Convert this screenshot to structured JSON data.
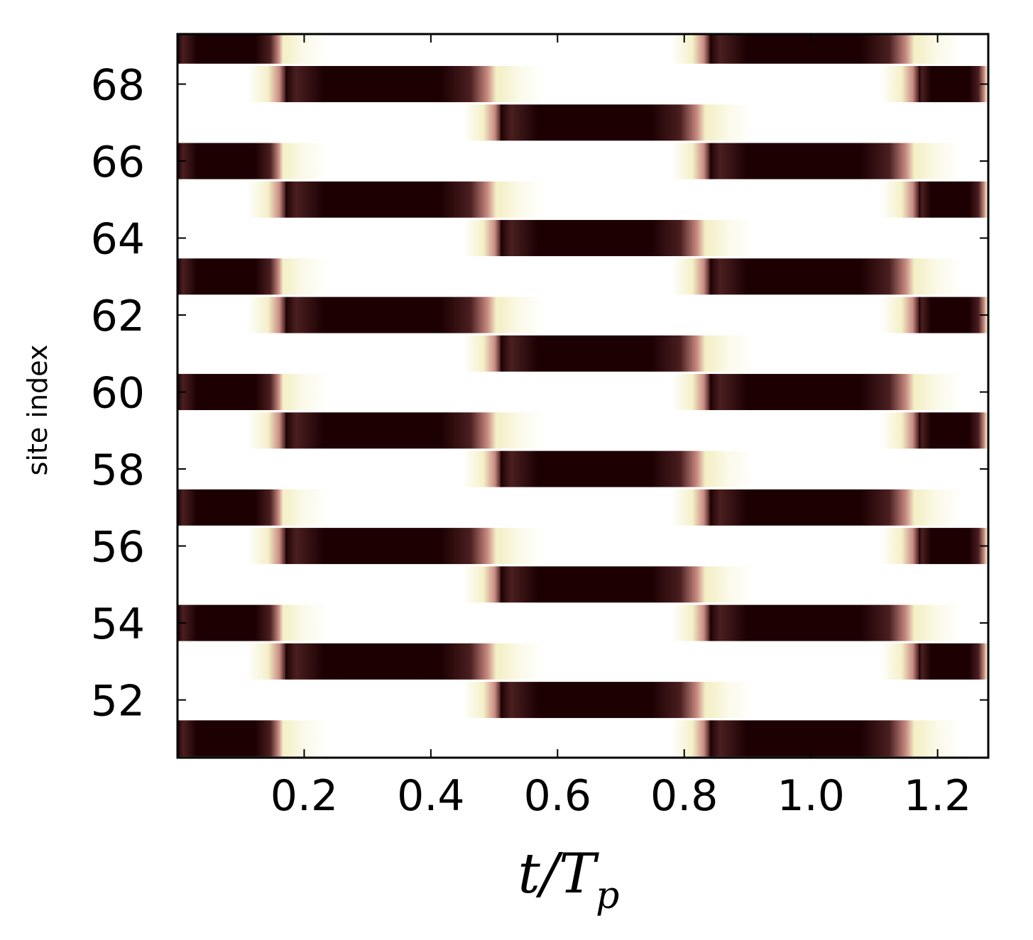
{
  "chart_data": {
    "type": "heatmap",
    "xlabel": "t/T",
    "xlabel_subscript": "p",
    "ylabel": "site index",
    "xlim": [
      0.0,
      1.28
    ],
    "ylim": [
      50.5,
      69.3
    ],
    "x_ticks": [
      {
        "value": 0.2,
        "label": "0.2"
      },
      {
        "value": 0.4,
        "label": "0.4"
      },
      {
        "value": 0.6,
        "label": "0.6"
      },
      {
        "value": 0.8,
        "label": "0.8"
      },
      {
        "value": 1.0,
        "label": "1.0"
      },
      {
        "value": 1.2,
        "label": "1.2"
      }
    ],
    "y_ticks": [
      {
        "value": 52,
        "label": "52"
      },
      {
        "value": 54,
        "label": "54"
      },
      {
        "value": 56,
        "label": "56"
      },
      {
        "value": 58,
        "label": "58"
      },
      {
        "value": 60,
        "label": "60"
      },
      {
        "value": 62,
        "label": "62"
      },
      {
        "value": 64,
        "label": "64"
      },
      {
        "value": 66,
        "label": "66"
      },
      {
        "value": 68,
        "label": "68"
      }
    ],
    "sites": [
      51,
      52,
      53,
      54,
      55,
      56,
      57,
      58,
      59,
      60,
      61,
      62,
      63,
      64,
      65,
      66,
      67,
      68,
      69
    ],
    "occupation_period_T": 1.0,
    "occupied_windows_by_phase": {
      "phase_0_sites": [
        51,
        54,
        57,
        60,
        63,
        66,
        69
      ],
      "phase_0_windows": [
        [
          0.0,
          0.17
        ],
        [
          0.84,
          1.17
        ]
      ],
      "phase_1_sites": [
        53,
        56,
        59,
        62,
        65,
        68
      ],
      "phase_1_windows": [
        [
          0.17,
          0.51
        ],
        [
          1.17,
          1.28
        ]
      ],
      "phase_2_sites": [
        52,
        55,
        58,
        61,
        64,
        67
      ],
      "phase_2_windows": [
        [
          0.51,
          0.84
        ]
      ]
    },
    "colormap": {
      "low": "#ffffff",
      "stops": [
        "#ffffff",
        "#f4f0c8",
        "#c98b82",
        "#4a1f20",
        "#1c0002"
      ],
      "high": "#1c0002"
    },
    "grid": false,
    "legend": "none"
  }
}
